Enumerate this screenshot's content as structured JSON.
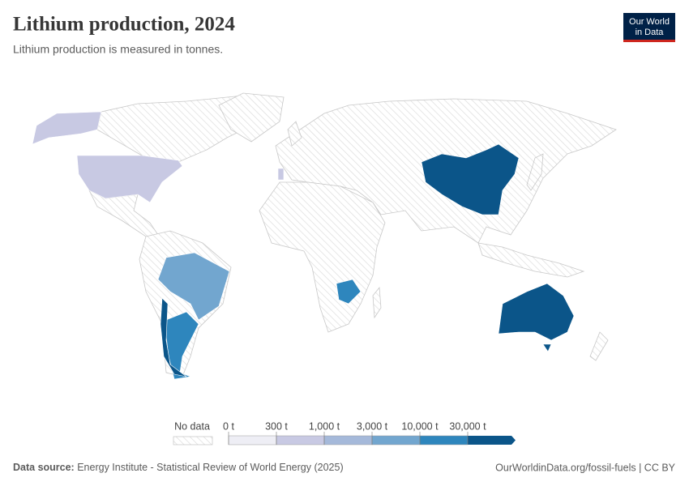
{
  "header": {
    "title": "Lithium production, 2024",
    "subtitle": "Lithium production is measured in tonnes.",
    "logo_lines": [
      "Our World",
      "in Data"
    ]
  },
  "legend": {
    "no_data": "No data",
    "ticks": [
      {
        "value": 0,
        "label": "0 t"
      },
      {
        "value": 300,
        "label": "300 t"
      },
      {
        "value": 1000,
        "label": "1,000 t"
      },
      {
        "value": 3000,
        "label": "3,000 t"
      },
      {
        "value": 10000,
        "label": "10,000 t"
      },
      {
        "value": 30000,
        "label": "30,000 t"
      }
    ],
    "colors": [
      "#eeeef5",
      "#c8c9e3",
      "#a5b9da",
      "#72a6cf",
      "#2e86bd",
      "#0b5589"
    ]
  },
  "footer": {
    "source_label": "Data source:",
    "source": "Energy Institute - Statistical Review of World Energy (2025)",
    "link": "OurWorldinData.org/fossil-fuels | CC BY"
  }
}
